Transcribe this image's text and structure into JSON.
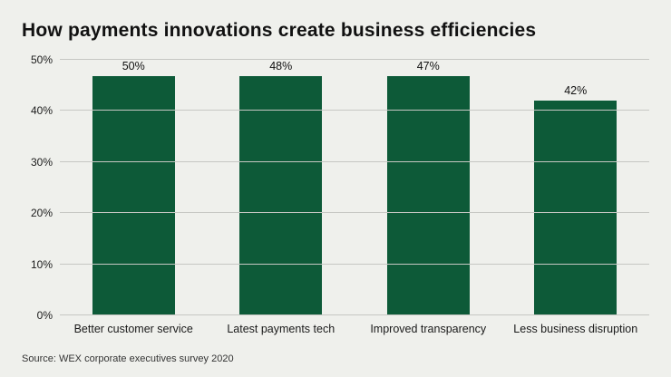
{
  "header": {
    "title": "How payments innovations create business efficiencies"
  },
  "footer": {
    "source": "Source: WEX corporate executives survey 2020"
  },
  "colors": {
    "bar": "#0d5a38",
    "background": "#eff0ec",
    "gridline": "#c6c7c3"
  },
  "chart_data": {
    "type": "bar",
    "title": "How payments innovations create business efficiencies",
    "categories": [
      "Better customer service",
      "Latest payments tech",
      "Improved transparency",
      "Less business disruption"
    ],
    "values": [
      50,
      48,
      47,
      42
    ],
    "value_labels": [
      "50%",
      "48%",
      "47%",
      "42%"
    ],
    "xlabel": "",
    "ylabel": "",
    "ylim": [
      0,
      50
    ],
    "yticks": [
      0,
      10,
      20,
      30,
      40,
      50
    ],
    "ytick_labels": [
      "0%",
      "10%",
      "20%",
      "30%",
      "40%",
      "50%"
    ],
    "grid": true,
    "legend": false,
    "source": "Source: WEX corporate executives survey 2020"
  }
}
